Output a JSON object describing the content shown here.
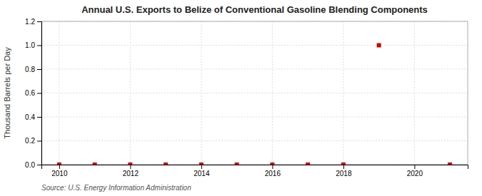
{
  "chart_data": {
    "type": "scatter",
    "title": "Annual U.S. Exports to Belize of Conventional Gasoline Blending Components",
    "ylabel": "Thousand Barrels per Day",
    "source": "Source: U.S. Energy Information Administration",
    "x": [
      2010,
      2011,
      2012,
      2013,
      2014,
      2015,
      2016,
      2017,
      2018,
      2019,
      2021
    ],
    "values": [
      0.0,
      0.0,
      0.0,
      0.0,
      0.0,
      0.0,
      0.0,
      0.0,
      0.0,
      1.0,
      0.0
    ],
    "color": "#cc0000",
    "marker": "square",
    "xlim": [
      2009.5,
      2021.5
    ],
    "xticks": [
      2010,
      2012,
      2014,
      2016,
      2018,
      2020
    ],
    "ylim": [
      0.0,
      1.2
    ],
    "yticks": [
      {
        "value": 0.0,
        "label": "0.0"
      },
      0.2,
      0.4,
      0.6,
      0.8,
      {
        "value": 1.0,
        "label": "1.0"
      },
      1.2
    ],
    "grid": true
  }
}
